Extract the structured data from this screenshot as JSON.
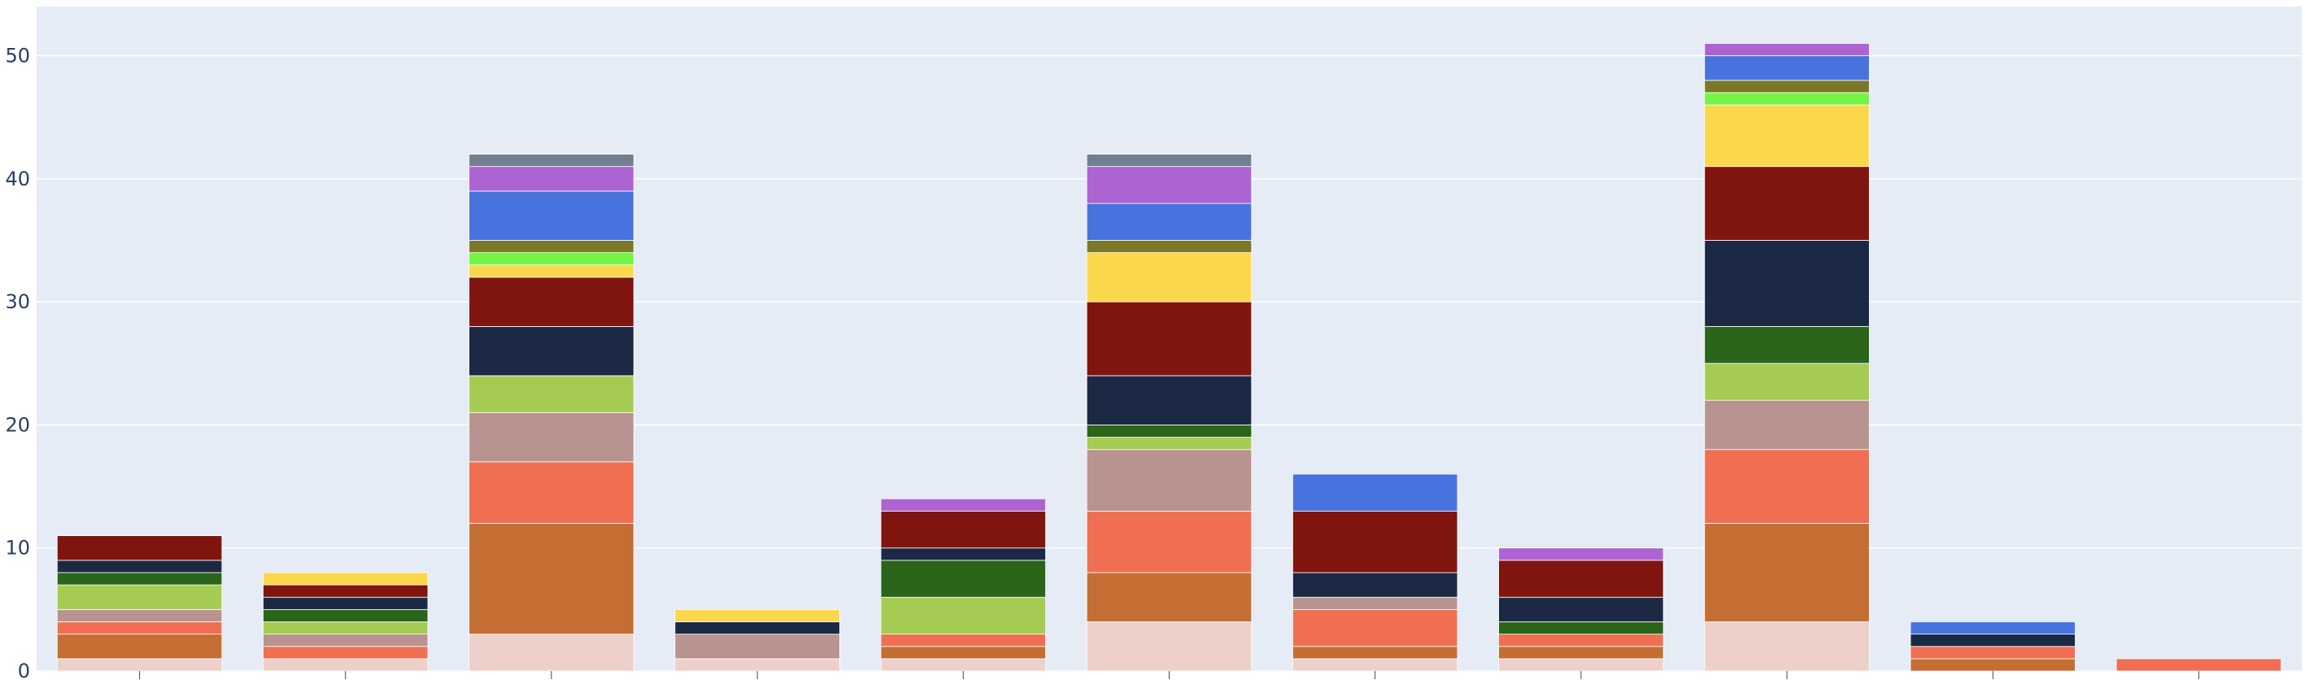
{
  "chart_data": {
    "type": "bar",
    "stacked": true,
    "categories": [
      "",
      "",
      "",
      "",
      "",
      "",
      "",
      "",
      "",
      "",
      ""
    ],
    "ylim": [
      0,
      54
    ],
    "yticks": [
      0,
      10,
      20,
      30,
      40,
      50
    ],
    "grid": true,
    "legend": "none",
    "colors": {
      "plot_bg": "#e5ecf6",
      "grid": "#ffffff",
      "tick_text": "#2a3f5f"
    },
    "series": [
      {
        "color": "#eed0ca",
        "values": [
          1,
          1,
          3,
          1,
          1,
          4,
          1,
          1,
          4,
          0,
          0
        ]
      },
      {
        "color": "#c46e33",
        "values": [
          2,
          0,
          9,
          0,
          1,
          4,
          1,
          1,
          8,
          1,
          0
        ]
      },
      {
        "color": "#f06f53",
        "values": [
          1,
          1,
          5,
          0,
          1,
          5,
          3,
          1,
          6,
          1,
          1
        ]
      },
      {
        "color": "#b9938f",
        "values": [
          1,
          1,
          4,
          2,
          0,
          5,
          1,
          0,
          4,
          0,
          0
        ]
      },
      {
        "color": "#a6cb52",
        "values": [
          2,
          1,
          3,
          0,
          3,
          1,
          0,
          0,
          3,
          0,
          0
        ]
      },
      {
        "color": "#2a6519",
        "values": [
          1,
          1,
          0,
          0,
          3,
          1,
          0,
          1,
          3,
          0,
          0
        ]
      },
      {
        "color": "#1b2945",
        "values": [
          1,
          1,
          4,
          1,
          1,
          4,
          2,
          2,
          7,
          1,
          0
        ]
      },
      {
        "color": "#7f150e",
        "values": [
          2,
          1,
          4,
          0,
          3,
          6,
          5,
          3,
          6,
          0,
          0
        ]
      },
      {
        "color": "#fbd84b",
        "values": [
          0,
          1,
          1,
          1,
          0,
          4,
          0,
          0,
          5,
          0,
          0
        ]
      },
      {
        "color": "#73f546",
        "values": [
          0,
          0,
          1,
          0,
          0,
          0,
          0,
          0,
          1,
          0,
          0
        ]
      },
      {
        "color": "#7b7928",
        "values": [
          0,
          0,
          1,
          0,
          0,
          1,
          0,
          0,
          1,
          0,
          0
        ]
      },
      {
        "color": "#4873de",
        "values": [
          0,
          0,
          4,
          0,
          0,
          3,
          3,
          0,
          2,
          1,
          0
        ]
      },
      {
        "color": "#ae63d3",
        "values": [
          0,
          0,
          2,
          0,
          1,
          3,
          0,
          1,
          1,
          0,
          0
        ]
      },
      {
        "color": "#717f8f",
        "values": [
          0,
          0,
          1,
          0,
          0,
          1,
          0,
          0,
          0,
          0,
          0
        ]
      }
    ]
  }
}
